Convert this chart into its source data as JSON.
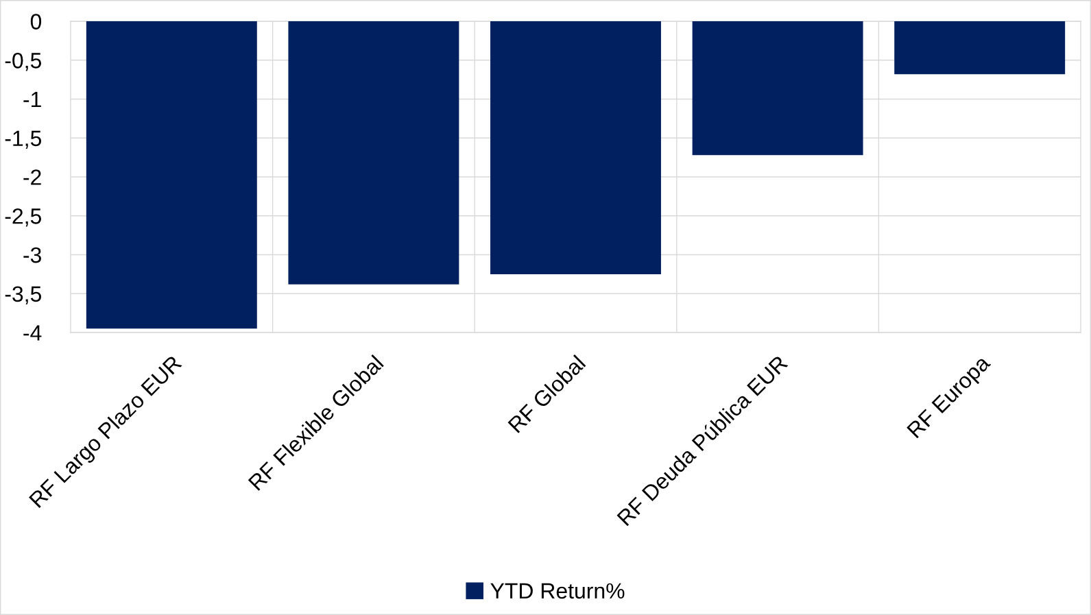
{
  "chart_data": {
    "type": "bar",
    "categories": [
      "RF Largo Plazo EUR",
      "RF Flexible Global",
      "RF Global",
      "RF Deuda Pública EUR",
      "RF Europa"
    ],
    "series": [
      {
        "name": "YTD Return%",
        "color": "#002060",
        "values": [
          -3.95,
          -3.38,
          -3.25,
          -1.72,
          -0.68
        ]
      }
    ],
    "ylim": [
      -4,
      0
    ],
    "yticks": [
      0,
      {
        "value": -0.5,
        "label": "-0,5"
      },
      -1,
      {
        "value": -1.5,
        "label": "-1,5"
      },
      -2,
      {
        "value": -2.5,
        "label": "-2,5"
      },
      -3,
      {
        "value": -3.5,
        "label": "-3,5"
      },
      -4
    ],
    "grid": true,
    "legend": "bottom"
  }
}
